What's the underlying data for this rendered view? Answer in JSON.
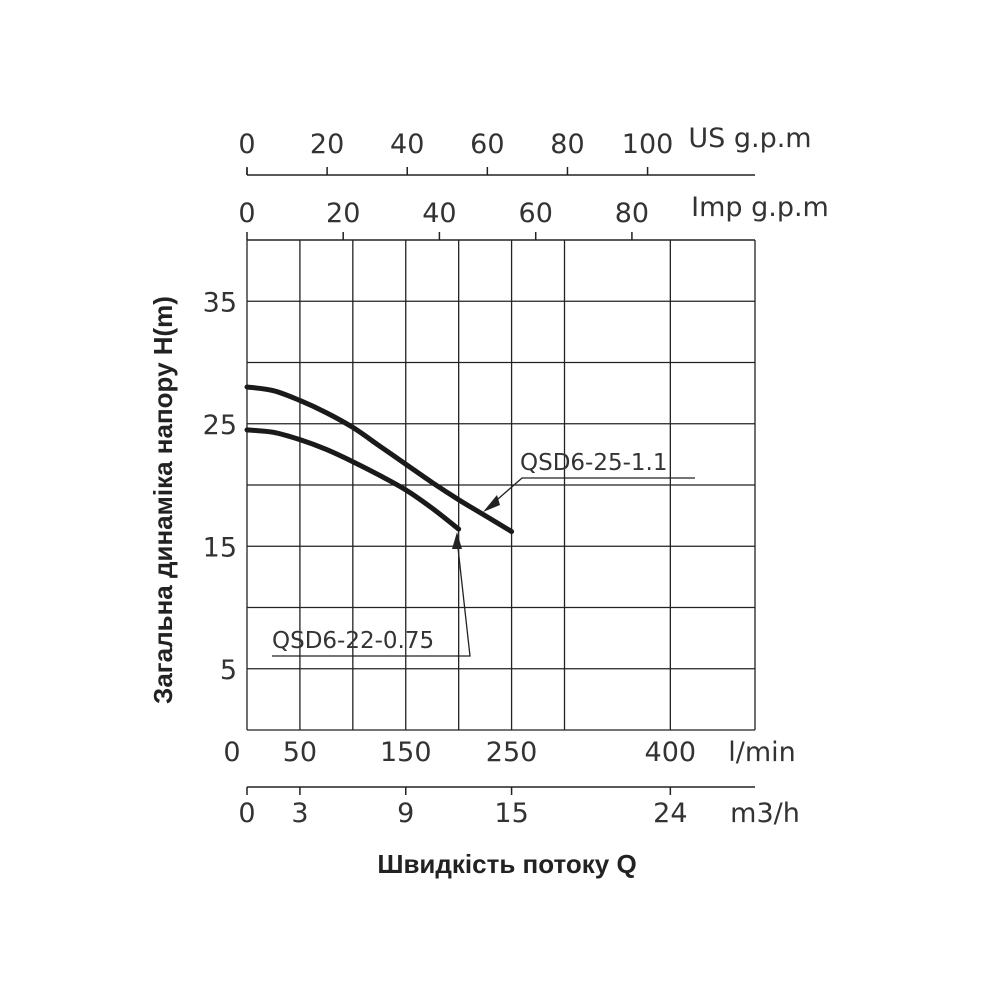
{
  "chart_data": {
    "type": "line",
    "ylabel": "Загальна динаміка напору H(m)",
    "xlabel": "Швидкість потоку Q",
    "x_unit": "l/min",
    "xlim": [
      0,
      480
    ],
    "ylim": [
      0,
      40
    ],
    "grid": true,
    "x_gridlines": [
      0,
      50,
      100,
      150,
      200,
      250,
      300,
      400,
      480
    ],
    "y_gridlines": [
      5,
      10,
      15,
      20,
      25,
      30,
      35
    ],
    "y_ticks": [
      {
        "value": 5,
        "label": "5"
      },
      {
        "value": 15,
        "label": "15"
      },
      {
        "value": 25,
        "label": "25"
      },
      {
        "value": 35,
        "label": "35"
      }
    ],
    "x_ticks_lmin": [
      {
        "value": 0,
        "label": "0"
      },
      {
        "value": 50,
        "label": "50"
      },
      {
        "value": 150,
        "label": "150"
      },
      {
        "value": 250,
        "label": "250"
      },
      {
        "value": 400,
        "label": "400"
      }
    ],
    "secondary_axes": [
      {
        "unit": "US g.p.m",
        "position": "top",
        "ticks": [
          {
            "label": "0",
            "lmin": 0
          },
          {
            "label": "20",
            "lmin": 75.7
          },
          {
            "label": "40",
            "lmin": 151.4
          },
          {
            "label": "60",
            "lmin": 227.1
          },
          {
            "label": "80",
            "lmin": 302.8
          },
          {
            "label": "100",
            "lmin": 378.5
          }
        ]
      },
      {
        "unit": "Imp g.p.m",
        "position": "top",
        "ticks": [
          {
            "label": "0",
            "lmin": 0
          },
          {
            "label": "20",
            "lmin": 90.9
          },
          {
            "label": "40",
            "lmin": 181.8
          },
          {
            "label": "60",
            "lmin": 272.8
          },
          {
            "label": "80",
            "lmin": 363.7
          }
        ]
      },
      {
        "unit": "m3/h",
        "position": "bottom",
        "ticks": [
          {
            "label": "0",
            "lmin": 0
          },
          {
            "label": "3",
            "lmin": 50
          },
          {
            "label": "9",
            "lmin": 150
          },
          {
            "label": "15",
            "lmin": 250
          },
          {
            "label": "24",
            "lmin": 400
          }
        ]
      }
    ],
    "series": [
      {
        "name": "QSD6-25-1.1",
        "x": [
          0,
          25,
          50,
          75,
          100,
          125,
          150,
          175,
          200,
          225,
          250
        ],
        "y": [
          28,
          27.7,
          26.9,
          25.9,
          24.7,
          23.2,
          21.7,
          20.2,
          18.8,
          17.5,
          16.2
        ]
      },
      {
        "name": "QSD6-22-0.75",
        "x": [
          0,
          25,
          50,
          75,
          100,
          125,
          150,
          175,
          200
        ],
        "y": [
          24.5,
          24.3,
          23.7,
          22.9,
          21.9,
          20.8,
          19.6,
          18.1,
          16.4
        ]
      }
    ]
  }
}
